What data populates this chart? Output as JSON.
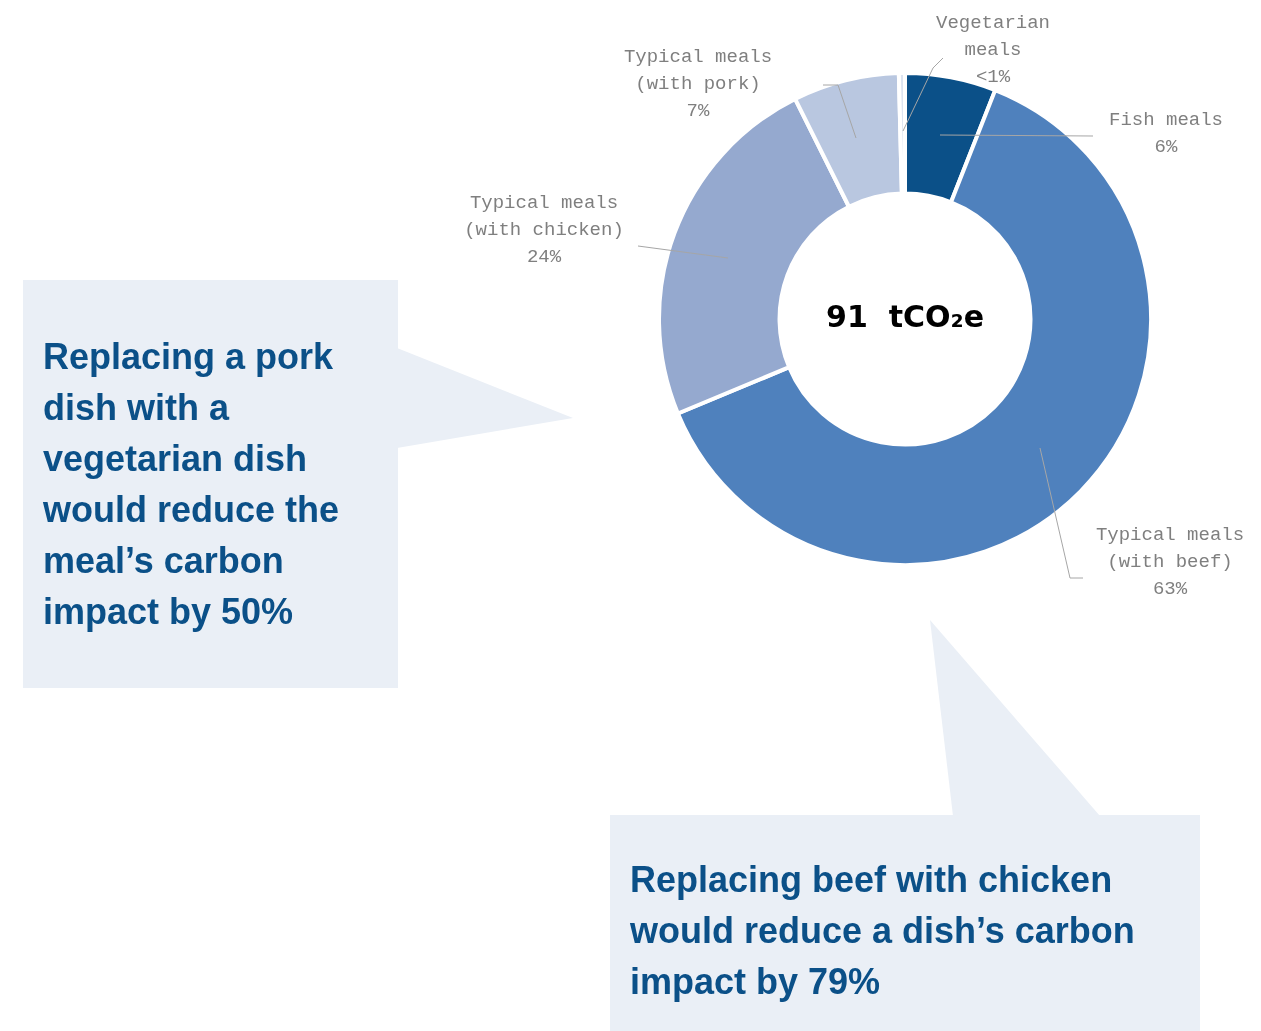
{
  "chart_data": {
    "type": "donut",
    "categories": [
      "Fish meals",
      "Typical meals (with beef)",
      "Typical meals (with chicken)",
      "Typical meals (with pork)",
      "Vegetarian meals"
    ],
    "values": [
      6,
      63,
      24,
      7,
      0.4
    ],
    "value_labels": [
      "6%",
      "63%",
      "24%",
      "7%",
      "<1%"
    ],
    "colors": [
      "#0b5088",
      "#4f81bd",
      "#95a9cf",
      "#b9c7e0",
      "#dde4f0"
    ],
    "legend": false,
    "annotations": [
      "91  tCO₂e",
      "Replacing a pork dish with a vegetarian dish would reduce the meal’s carbon impact by 50%",
      "Replacing beef with chicken would reduce a dish’s carbon impact by 79%"
    ]
  }
}
